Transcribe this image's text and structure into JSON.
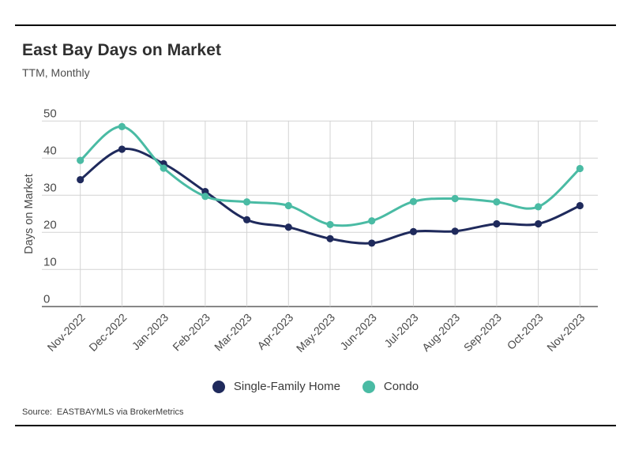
{
  "header": {
    "title": "East Bay Days on Market",
    "subtitle": "TTM, Monthly"
  },
  "footer": {
    "source_label": "Source:",
    "source_text": "EASTBAYMLS via BrokerMetrics"
  },
  "legend": {
    "items": [
      {
        "label": "Single-Family Home",
        "color": "#1f2a5c"
      },
      {
        "label": "Condo",
        "color": "#4abba4"
      }
    ]
  },
  "chart_data": {
    "type": "line",
    "title": "East Bay Days on Market",
    "subtitle": "TTM, Monthly",
    "xlabel": "",
    "ylabel": "Days on Market",
    "ylim": [
      0,
      50
    ],
    "yticks": [
      0,
      10,
      20,
      30,
      40,
      50
    ],
    "grid": true,
    "legend_position": "bottom",
    "curve": "smooth",
    "categories": [
      "Nov-2022",
      "Dec-2022",
      "Jan-2023",
      "Feb-2023",
      "Mar-2023",
      "Apr-2023",
      "May-2023",
      "Jun-2023",
      "Jul-2023",
      "Aug-2023",
      "Sep-2023",
      "Oct-2023",
      "Nov-2023"
    ],
    "series": [
      {
        "name": "Single-Family Home",
        "color": "#1f2a5c",
        "values": [
          34.2,
          42.4,
          38.5,
          31.0,
          23.4,
          21.4,
          18.3,
          17.1,
          20.2,
          20.3,
          22.3,
          22.3,
          27.2
        ]
      },
      {
        "name": "Condo",
        "color": "#4abba4",
        "values": [
          39.4,
          48.5,
          37.3,
          29.7,
          28.2,
          27.2,
          22.1,
          23.1,
          28.3,
          29.1,
          28.2,
          26.9,
          37.2
        ]
      }
    ]
  }
}
